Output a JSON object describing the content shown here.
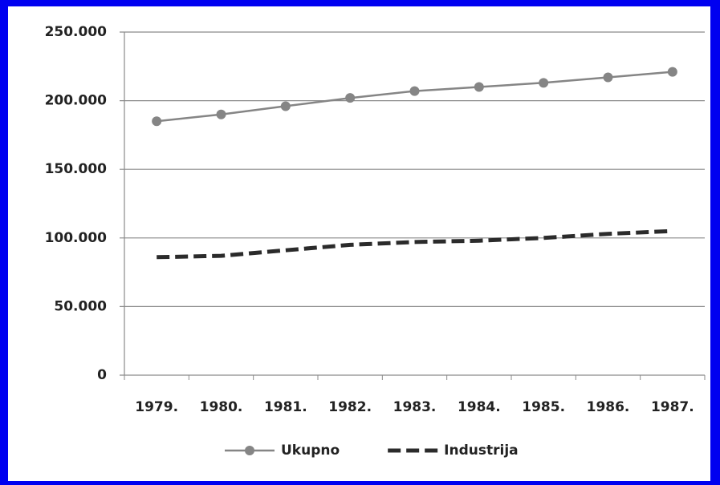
{
  "chart_data": {
    "type": "line",
    "categories": [
      "1979.",
      "1980.",
      "1981.",
      "1982.",
      "1983.",
      "1984.",
      "1985.",
      "1986.",
      "1987."
    ],
    "series": [
      {
        "name": "Ukupno",
        "color": "#858585",
        "dashed": false,
        "markers": true,
        "values": [
          185000,
          190000,
          196000,
          202000,
          207000,
          210000,
          213000,
          217000,
          221000
        ]
      },
      {
        "name": "Industrija",
        "color": "#2b2b2b",
        "dashed": true,
        "markers": false,
        "values": [
          86000,
          87000,
          91000,
          95000,
          97000,
          98000,
          100000,
          103000,
          105000
        ]
      }
    ],
    "ylim": [
      0,
      250000
    ],
    "yticks": [
      0,
      {
        "value": 50000,
        "label": "50.000"
      },
      {
        "value": 100000,
        "label": "100.000"
      },
      {
        "value": 150000,
        "label": "150.000"
      },
      {
        "value": 200000,
        "label": "200.000"
      },
      {
        "value": 250000,
        "label": "250.000"
      }
    ],
    "grid": true,
    "legend": "bottom"
  }
}
